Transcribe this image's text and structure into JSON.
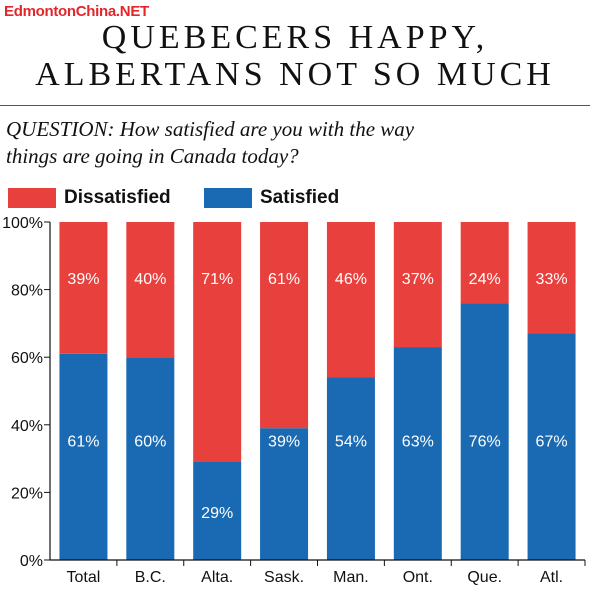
{
  "watermark": "EdmontonChina.NET",
  "title_line1": "QUEBECERS HAPPY,",
  "title_line2": "ALBERTANS NOT SO MUCH",
  "question_line1": "QUESTION: How satisfied are you with the way",
  "question_line2": "things are going in Canada today?",
  "colors": {
    "dissatisfied": "#e8403d",
    "satisfied": "#1a6ab3",
    "label": "#ffffff",
    "axis": "#111111"
  },
  "chart_data": {
    "type": "bar",
    "stacked": true,
    "categories": [
      "Total",
      "B.C.",
      "Alta.",
      "Sask.",
      "Man.",
      "Ont.",
      "Que.",
      "Atl."
    ],
    "series": [
      {
        "name": "Dissatisfied",
        "values": [
          39,
          40,
          71,
          61,
          46,
          37,
          24,
          33
        ],
        "labels": [
          "39%",
          "40%",
          "71%",
          "61%",
          "46%",
          "37%",
          "24%",
          "33%"
        ]
      },
      {
        "name": "Satisfied",
        "values": [
          61,
          60,
          29,
          39,
          54,
          63,
          76,
          67
        ],
        "labels": [
          "61%",
          "60%",
          "29%",
          "39%",
          "54%",
          "63%",
          "76%",
          "67%"
        ]
      }
    ],
    "y_ticks": [
      "0%",
      "20%",
      "40%",
      "60%",
      "80%",
      "100%"
    ],
    "ylim": [
      0,
      100
    ],
    "grid": false,
    "legend": "top-left"
  }
}
